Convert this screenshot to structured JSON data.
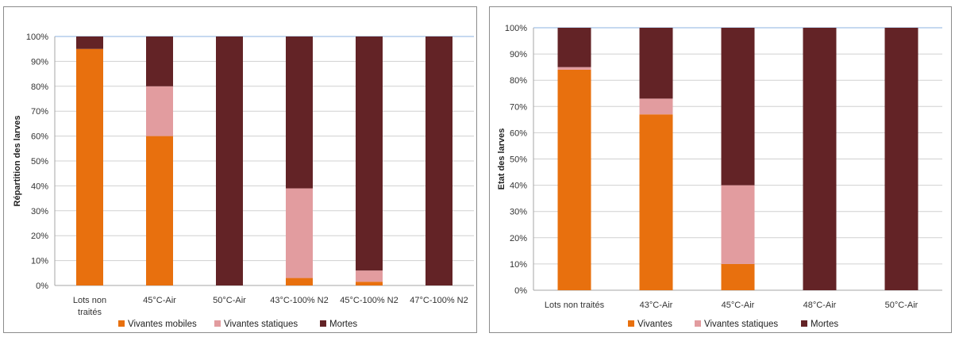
{
  "colors": {
    "Vivantes mobiles": "#e8700e",
    "Vivantes": "#e8700e",
    "Vivantes statiques": "#e29c9f",
    "Mortes": "#632326",
    "gridline": "#d0d0d0",
    "top_line": "#8db3e2"
  },
  "chart_data": [
    {
      "type": "bar",
      "stacked": true,
      "categories": [
        [
          "Lots non",
          "traités"
        ],
        [
          "45°C-Air"
        ],
        [
          "50°C-Air"
        ],
        [
          "43°C-100% N2"
        ],
        [
          "45°C-100% N2"
        ],
        [
          "47°C-100% N2"
        ]
      ],
      "series": [
        {
          "name": "Vivantes mobiles",
          "values": [
            95,
            60,
            0,
            3,
            1.5,
            0
          ]
        },
        {
          "name": "Vivantes statiques",
          "values": [
            0,
            20,
            0,
            36,
            4.5,
            0
          ]
        },
        {
          "name": "Mortes",
          "values": [
            5,
            20,
            100,
            61,
            94,
            100
          ]
        }
      ],
      "ylabel": "Répartition des larves",
      "ylim": [
        0,
        100
      ],
      "yticks": [
        "0%",
        "10%",
        "20%",
        "30%",
        "40%",
        "50%",
        "60%",
        "70%",
        "80%",
        "90%",
        "100%"
      ],
      "grid": true,
      "legend": "bottom"
    },
    {
      "type": "bar",
      "stacked": true,
      "categories": [
        [
          "Lots non traités"
        ],
        [
          "43°C-Air"
        ],
        [
          "45°C-Air"
        ],
        [
          "48°C-Air"
        ],
        [
          "50°C-Air"
        ]
      ],
      "series": [
        {
          "name": "Vivantes",
          "values": [
            84,
            67,
            10,
            0,
            0
          ]
        },
        {
          "name": "Vivantes statiques",
          "values": [
            1,
            6,
            30,
            0,
            0
          ]
        },
        {
          "name": "Mortes",
          "values": [
            15,
            27,
            60,
            100,
            100
          ]
        }
      ],
      "ylabel": "Etat des larves",
      "ylim": [
        0,
        100
      ],
      "yticks": [
        "0%",
        "10%",
        "20%",
        "30%",
        "40%",
        "50%",
        "60%",
        "70%",
        "80%",
        "90%",
        "100%"
      ],
      "grid": true,
      "legend": "bottom"
    }
  ]
}
